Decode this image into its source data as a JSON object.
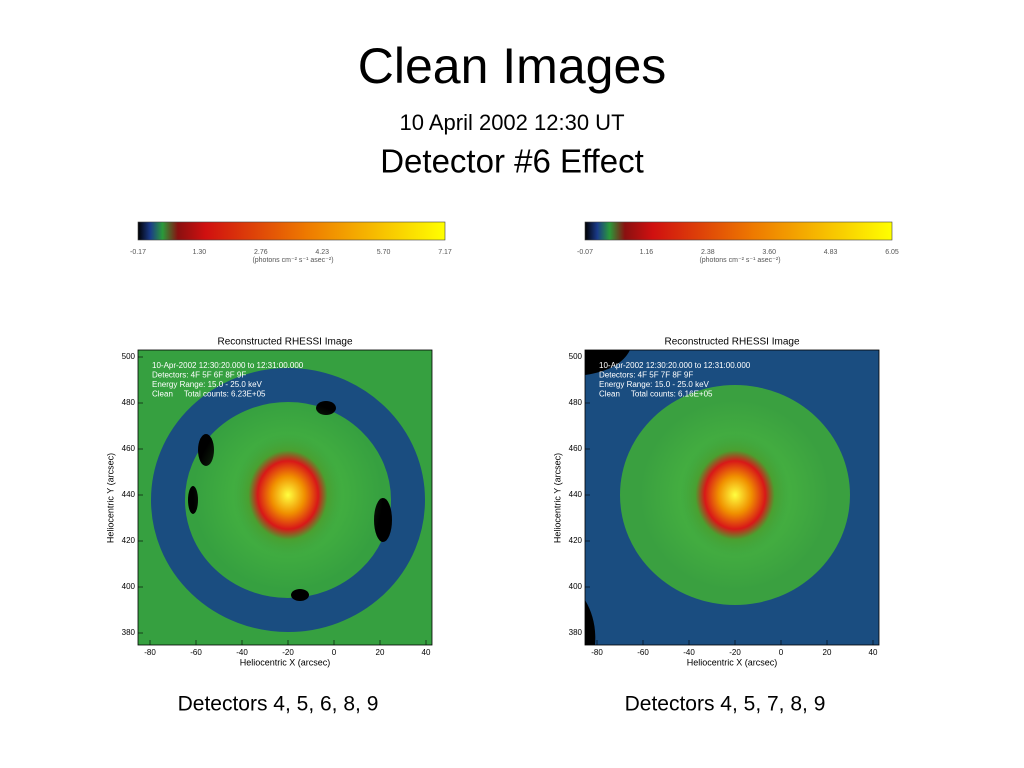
{
  "header": {
    "title": "Clean Images",
    "subtitle": "10 April 2002 12:30 UT",
    "heading": "Detector #6 Effect"
  },
  "panels": [
    {
      "colorbar": {
        "ticks": [
          "-0.17",
          "1.30",
          "2.76",
          "4.23",
          "5.70",
          "7.17"
        ],
        "unit": "(photons cm⁻² s⁻¹ asec⁻²)"
      },
      "plot": {
        "title": "Reconstructed RHESSI Image",
        "info": [
          "10-Apr-2002 12:30:20.000 to 12:31:00.000",
          "Detectors: 4F 5F 6F 8F 9F",
          "Energy Range: 15.0 - 25.0 keV",
          "Clean     Total counts: 6.23E+05"
        ],
        "y_label": "Heliocentric Y (arcsec)",
        "x_label": "Heliocentric X (arcsec)",
        "y_ticks": [
          "500",
          "480",
          "460",
          "440",
          "420",
          "400",
          "380"
        ],
        "x_ticks": [
          "-80",
          "-60",
          "-40",
          "-20",
          "0",
          "20",
          "40"
        ]
      },
      "caption": "Detectors 4, 5, 6, 8, 9"
    },
    {
      "colorbar": {
        "ticks": [
          "-0.07",
          "1.16",
          "2.38",
          "3.60",
          "4.83",
          "6.05"
        ],
        "unit": "(photons cm⁻² s⁻¹ asec⁻²)"
      },
      "plot": {
        "title": "Reconstructed RHESSI Image",
        "info": [
          "10-Apr-2002 12:30:20.000 to 12:31:00.000",
          "Detectors: 4F 5F 7F 8F 9F",
          "Energy Range: 15.0 - 25.0 keV",
          "Clean     Total counts: 6.16E+05"
        ],
        "y_label": "Heliocentric Y (arcsec)",
        "x_label": "Heliocentric X (arcsec)",
        "y_ticks": [
          "500",
          "480",
          "460",
          "440",
          "420",
          "400",
          "380"
        ],
        "x_ticks": [
          "-80",
          "-60",
          "-40",
          "-20",
          "0",
          "20",
          "40"
        ]
      },
      "caption": "Detectors 4, 5, 7, 8, 9"
    }
  ]
}
